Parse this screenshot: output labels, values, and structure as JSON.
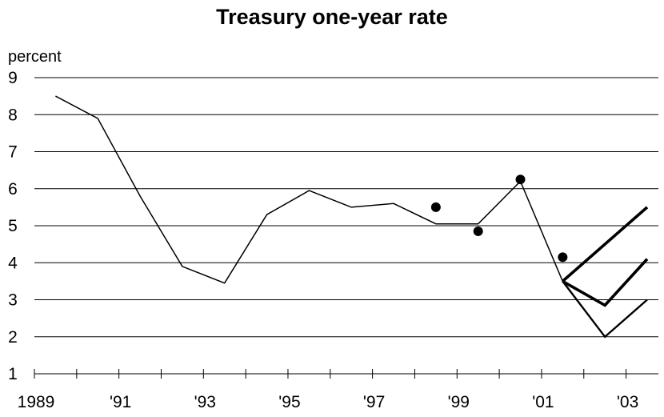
{
  "chart_data": {
    "type": "line",
    "title": "Treasury one-year rate",
    "ylabel": "percent",
    "xlabel": "",
    "ylim": [
      1,
      9
    ],
    "xlim": [
      1989,
      2003.5
    ],
    "yticks": [
      1,
      2,
      3,
      4,
      5,
      6,
      7,
      8,
      9
    ],
    "ytick_labels": [
      "1",
      "2",
      "3",
      "4",
      "5",
      "6",
      "7",
      "8",
      "9"
    ],
    "xticks": [
      1989,
      1991,
      1993,
      1995,
      1997,
      1999,
      2001,
      2003
    ],
    "xtick_labels": [
      "1989",
      "'91",
      "'93",
      "'95",
      "'97",
      "'99",
      "'01",
      "'03"
    ],
    "grid": "horizontal",
    "series": [
      {
        "kind": "line",
        "stroke": "#000000",
        "weight": "thin",
        "x": [
          1989.5,
          1990.5,
          1991.5,
          1992.5,
          1993.5,
          1994.5,
          1995.5,
          1996.5,
          1997.5,
          1998.5,
          1999.5,
          2000.5,
          2001.5
        ],
        "y": [
          8.5,
          7.9,
          5.8,
          3.9,
          3.45,
          5.3,
          5.95,
          5.5,
          5.6,
          5.05,
          5.05,
          6.2,
          3.5
        ]
      },
      {
        "kind": "points",
        "stroke": "#000000",
        "x": [
          1998.5,
          1999.5,
          2000.5,
          2001.5
        ],
        "y": [
          5.5,
          4.85,
          6.25,
          4.15
        ]
      },
      {
        "kind": "line",
        "stroke": "#000000",
        "weight": "thick",
        "x": [
          2001.5,
          2003.5
        ],
        "y": [
          3.5,
          5.5
        ]
      },
      {
        "kind": "line",
        "stroke": "#000000",
        "weight": "thick",
        "x": [
          2001.5,
          2002.5,
          2003.5
        ],
        "y": [
          3.5,
          2.85,
          4.1
        ]
      },
      {
        "kind": "line",
        "stroke": "#000000",
        "weight": "medium",
        "x": [
          2001.5,
          2002.5,
          2003.5
        ],
        "y": [
          3.5,
          2.0,
          3.0
        ]
      }
    ]
  }
}
